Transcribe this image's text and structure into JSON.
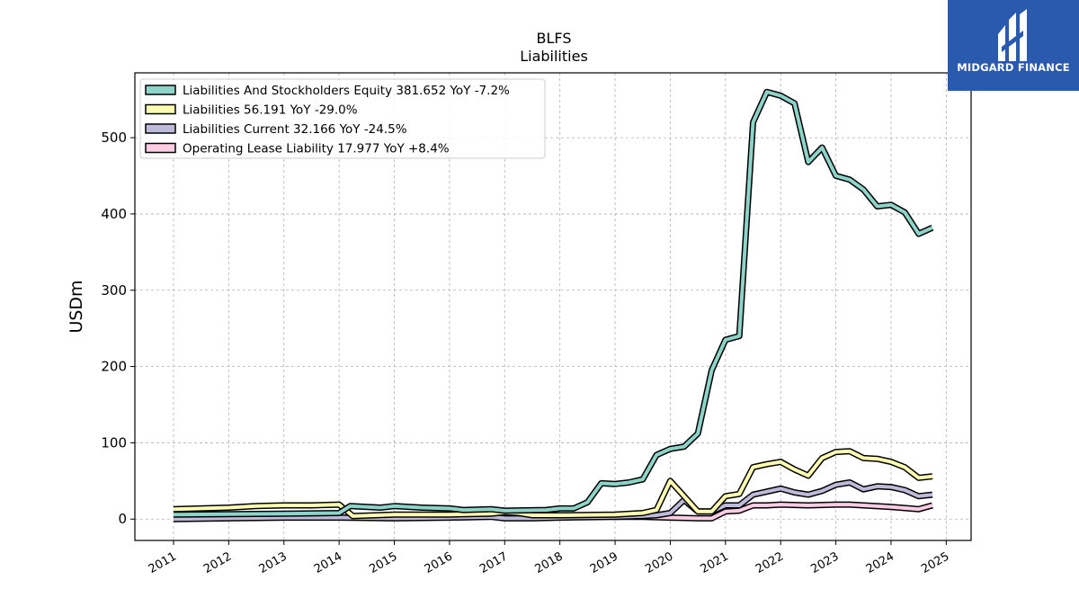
{
  "chart_data": {
    "type": "line",
    "title": "BLFS",
    "subtitle": "Liabilities",
    "xlabel": "",
    "ylabel": "USDm",
    "xlim": [
      2010.3,
      2025.45
    ],
    "ylim": [
      -28,
      585
    ],
    "x_ticks": [
      "2011",
      "2012",
      "2013",
      "2014",
      "2015",
      "2016",
      "2017",
      "2018",
      "2019",
      "2020",
      "2021",
      "2022",
      "2023",
      "2024",
      "2025"
    ],
    "y_ticks": [
      0,
      100,
      200,
      300,
      400,
      500
    ],
    "grid": true,
    "legend_position": "top-left",
    "series": [
      {
        "name": "Liabilities And Stockholders Equity",
        "legend": "Liabilities And Stockholders Equity  381.652 YoY -7.2%",
        "color": "#8dd3c7",
        "points": [
          [
            2011.0,
            6
          ],
          [
            2013.0,
            7
          ],
          [
            2014.0,
            8
          ],
          [
            2014.2,
            17
          ],
          [
            2014.75,
            15
          ],
          [
            2015.0,
            17
          ],
          [
            2015.5,
            15
          ],
          [
            2016.0,
            14
          ],
          [
            2016.25,
            12
          ],
          [
            2016.75,
            13
          ],
          [
            2017.0,
            11
          ],
          [
            2017.75,
            12
          ],
          [
            2018.0,
            14
          ],
          [
            2018.25,
            14
          ],
          [
            2018.5,
            22
          ],
          [
            2018.75,
            47
          ],
          [
            2019.0,
            46
          ],
          [
            2019.25,
            48
          ],
          [
            2019.5,
            52
          ],
          [
            2019.75,
            84
          ],
          [
            2020.0,
            92
          ],
          [
            2020.25,
            95
          ],
          [
            2020.5,
            112
          ],
          [
            2020.75,
            195
          ],
          [
            2021.0,
            235
          ],
          [
            2021.25,
            240
          ],
          [
            2021.5,
            520
          ],
          [
            2021.75,
            560
          ],
          [
            2022.0,
            555
          ],
          [
            2022.25,
            545
          ],
          [
            2022.5,
            468
          ],
          [
            2022.75,
            487
          ],
          [
            2023.0,
            450
          ],
          [
            2023.25,
            445
          ],
          [
            2023.5,
            432
          ],
          [
            2023.75,
            410
          ],
          [
            2024.0,
            412
          ],
          [
            2024.25,
            402
          ],
          [
            2024.5,
            374
          ],
          [
            2024.75,
            382
          ]
        ]
      },
      {
        "name": "Liabilities",
        "legend": "Liabilities  56.191 YoY -29.0%",
        "color": "#ffffb3",
        "points": [
          [
            2011.0,
            13
          ],
          [
            2012.0,
            15
          ],
          [
            2012.5,
            17
          ],
          [
            2013.0,
            18
          ],
          [
            2013.5,
            18
          ],
          [
            2014.0,
            19
          ],
          [
            2014.25,
            4
          ],
          [
            2015.0,
            6
          ],
          [
            2016.0,
            6
          ],
          [
            2016.75,
            7
          ],
          [
            2017.0,
            9
          ],
          [
            2017.25,
            8
          ],
          [
            2017.5,
            5
          ],
          [
            2018.0,
            5
          ],
          [
            2019.0,
            6
          ],
          [
            2019.5,
            8
          ],
          [
            2019.75,
            12
          ],
          [
            2020.0,
            50
          ],
          [
            2020.25,
            30
          ],
          [
            2020.5,
            10
          ],
          [
            2020.75,
            10
          ],
          [
            2021.0,
            30
          ],
          [
            2021.25,
            33
          ],
          [
            2021.5,
            68
          ],
          [
            2021.75,
            72
          ],
          [
            2022.0,
            75
          ],
          [
            2022.25,
            65
          ],
          [
            2022.5,
            57
          ],
          [
            2022.75,
            80
          ],
          [
            2023.0,
            88
          ],
          [
            2023.25,
            89
          ],
          [
            2023.5,
            80
          ],
          [
            2023.75,
            79
          ],
          [
            2024.0,
            75
          ],
          [
            2024.25,
            68
          ],
          [
            2024.5,
            54
          ],
          [
            2024.75,
            56
          ]
        ]
      },
      {
        "name": "Liabilities Current",
        "legend": "Liabilities Current  32.166 YoY -24.5%",
        "color": "#bebada",
        "points": [
          [
            2011.0,
            0
          ],
          [
            2013.0,
            2
          ],
          [
            2014.0,
            2
          ],
          [
            2015.0,
            1
          ],
          [
            2016.0,
            2
          ],
          [
            2016.75,
            3
          ],
          [
            2017.0,
            1
          ],
          [
            2017.5,
            1
          ],
          [
            2018.0,
            2
          ],
          [
            2019.0,
            3
          ],
          [
            2019.5,
            4
          ],
          [
            2019.75,
            5
          ],
          [
            2020.0,
            8
          ],
          [
            2020.25,
            25
          ],
          [
            2020.5,
            10
          ],
          [
            2020.75,
            10
          ],
          [
            2021.0,
            18
          ],
          [
            2021.25,
            18
          ],
          [
            2021.5,
            32
          ],
          [
            2021.75,
            36
          ],
          [
            2022.0,
            40
          ],
          [
            2022.25,
            35
          ],
          [
            2022.5,
            32
          ],
          [
            2022.75,
            37
          ],
          [
            2023.0,
            45
          ],
          [
            2023.25,
            48
          ],
          [
            2023.5,
            39
          ],
          [
            2023.75,
            43
          ],
          [
            2024.0,
            42
          ],
          [
            2024.25,
            38
          ],
          [
            2024.5,
            30
          ],
          [
            2024.75,
            32
          ]
        ]
      },
      {
        "name": "Operating Lease Liability",
        "legend": "Operating Lease Liability  17.977 YoY +8.4%",
        "color": "#fccde5",
        "points": [
          [
            2018.95,
            3
          ],
          [
            2019.5,
            3
          ],
          [
            2020.0,
            2
          ],
          [
            2020.5,
            1
          ],
          [
            2020.75,
            1
          ],
          [
            2021.0,
            10
          ],
          [
            2021.25,
            11
          ],
          [
            2021.5,
            18
          ],
          [
            2021.75,
            18
          ],
          [
            2022.0,
            19
          ],
          [
            2022.5,
            18
          ],
          [
            2023.0,
            19
          ],
          [
            2023.25,
            19
          ],
          [
            2023.5,
            18
          ],
          [
            2024.0,
            16
          ],
          [
            2024.5,
            13
          ],
          [
            2024.75,
            18
          ]
        ]
      }
    ]
  },
  "logo": {
    "text": "MIDGARD FINANCE",
    "name": "midgard-finance-logo"
  }
}
